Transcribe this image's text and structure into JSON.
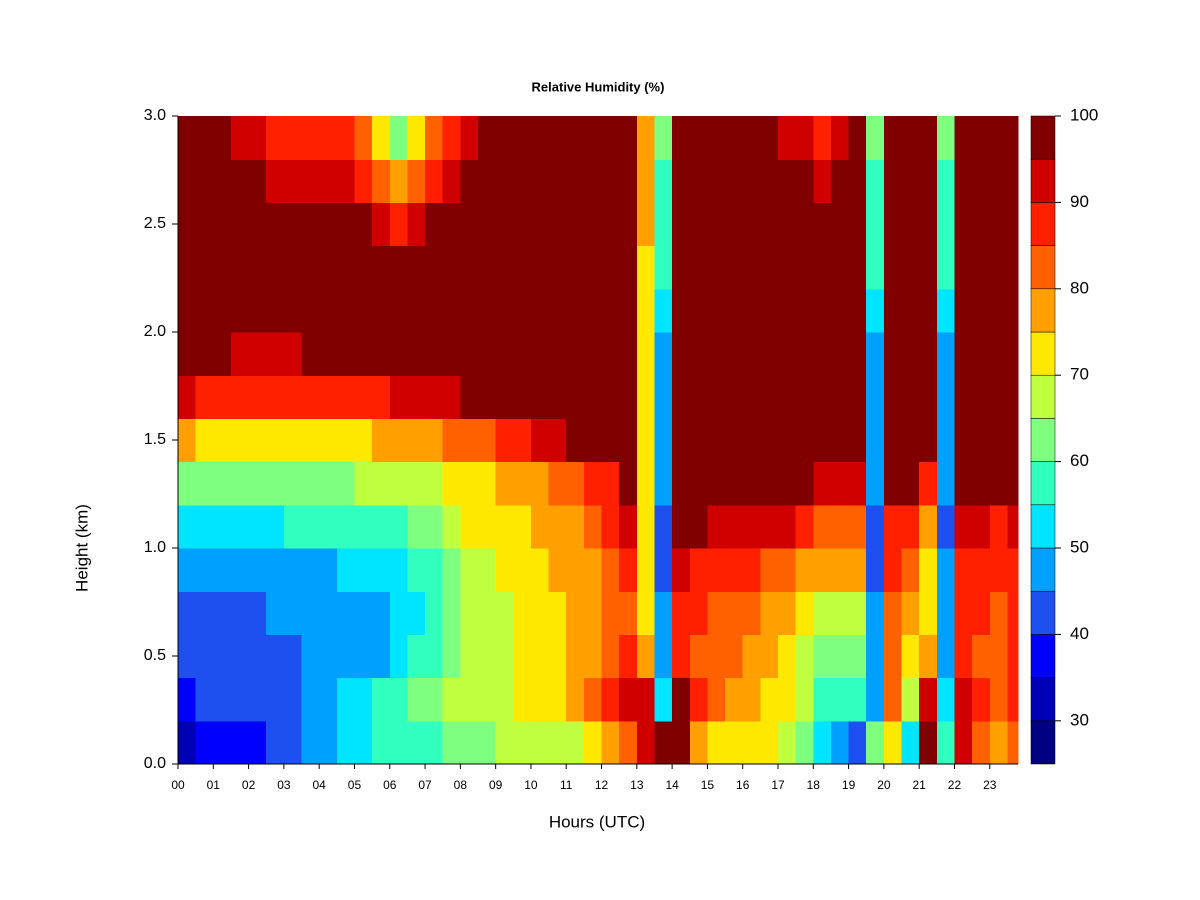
{
  "chart_data": {
    "type": "heatmap",
    "title": "Relative Humidity (%)",
    "x_label": "Hours (UTC)",
    "y_label": "Height (km)",
    "xlim": [
      0,
      23.8
    ],
    "ylim": [
      0,
      3
    ],
    "xticks": [
      {
        "value": 0,
        "label": "00"
      },
      {
        "value": 1,
        "label": "01"
      },
      {
        "value": 2,
        "label": "02"
      },
      {
        "value": 3,
        "label": "03"
      },
      {
        "value": 4,
        "label": "04"
      },
      {
        "value": 5,
        "label": "05"
      },
      {
        "value": 6,
        "label": "06"
      },
      {
        "value": 7,
        "label": "07"
      },
      {
        "value": 8,
        "label": "08"
      },
      {
        "value": 9,
        "label": "09"
      },
      10,
      11,
      12,
      13,
      14,
      15,
      16,
      17,
      18,
      19,
      20,
      21,
      22,
      23
    ],
    "yticks": [
      {
        "value": 0,
        "label": "0.0"
      },
      0.5,
      {
        "value": 1,
        "label": "1.0"
      },
      1.5,
      {
        "value": 2,
        "label": "2.0"
      },
      2.5,
      {
        "value": 3,
        "label": "3.0"
      }
    ],
    "x": [
      0,
      0.5,
      1,
      1.5,
      2,
      2.5,
      3,
      3.5,
      4,
      4.5,
      5,
      5.5,
      6,
      6.5,
      7,
      7.5,
      8,
      8.5,
      9,
      9.5,
      10,
      10.5,
      11,
      11.5,
      12,
      12.5,
      13,
      13.5,
      14,
      14.5,
      15,
      15.5,
      16,
      16.5,
      17,
      17.5,
      18,
      18.5,
      19,
      19.5,
      20,
      20.5,
      21,
      21.5,
      22,
      22.5,
      23,
      23.5
    ],
    "y": [
      0,
      0.2,
      0.4,
      0.6,
      0.8,
      1.0,
      1.2,
      1.4,
      1.6,
      1.8,
      2.0,
      2.2,
      2.4,
      2.6,
      2.8
    ],
    "z": [
      [
        33,
        35,
        37,
        38,
        38,
        40,
        42,
        45,
        47,
        50,
        52,
        55,
        55,
        57,
        58,
        60,
        62,
        63,
        65,
        65,
        67,
        68,
        68,
        70,
        75,
        80,
        93,
        95,
        97,
        75,
        72,
        70,
        72,
        72,
        68,
        62,
        50,
        45,
        42,
        60,
        70,
        50,
        95,
        55,
        90,
        80,
        78,
        80
      ],
      [
        38,
        40,
        40,
        42,
        42,
        43,
        44,
        45,
        47,
        50,
        52,
        55,
        58,
        62,
        63,
        65,
        67,
        68,
        68,
        70,
        72,
        73,
        75,
        80,
        88,
        90,
        93,
        50,
        95,
        85,
        80,
        75,
        75,
        72,
        70,
        65,
        58,
        55,
        55,
        45,
        80,
        65,
        90,
        50,
        92,
        85,
        82,
        85
      ],
      [
        40,
        40,
        42,
        42,
        43,
        43,
        44,
        45,
        45,
        47,
        48,
        48,
        52,
        55,
        58,
        62,
        65,
        67,
        68,
        70,
        72,
        73,
        75,
        78,
        82,
        85,
        75,
        45,
        88,
        82,
        80,
        80,
        78,
        75,
        72,
        68,
        62,
        60,
        60,
        45,
        80,
        72,
        75,
        45,
        85,
        82,
        80,
        85
      ],
      [
        40,
        42,
        42,
        43,
        43,
        45,
        45,
        45,
        45,
        47,
        48,
        48,
        50,
        52,
        55,
        60,
        65,
        67,
        68,
        70,
        72,
        73,
        75,
        78,
        80,
        82,
        70,
        45,
        85,
        85,
        82,
        82,
        80,
        78,
        75,
        70,
        68,
        67,
        68,
        45,
        82,
        75,
        70,
        45,
        85,
        85,
        82,
        85
      ],
      [
        45,
        45,
        45,
        47,
        47,
        48,
        48,
        48,
        48,
        50,
        50,
        52,
        52,
        55,
        58,
        62,
        67,
        68,
        70,
        72,
        73,
        75,
        75,
        78,
        82,
        85,
        70,
        42,
        90,
        88,
        85,
        85,
        85,
        82,
        80,
        78,
        75,
        75,
        75,
        42,
        85,
        80,
        70,
        45,
        88,
        88,
        85,
        88
      ],
      [
        52,
        52,
        52,
        53,
        53,
        53,
        55,
        55,
        55,
        55,
        55,
        57,
        57,
        60,
        62,
        65,
        70,
        72,
        72,
        73,
        75,
        75,
        77,
        80,
        85,
        90,
        70,
        42,
        100,
        95,
        92,
        90,
        92,
        92,
        90,
        85,
        82,
        80,
        82,
        42,
        88,
        85,
        75,
        42,
        90,
        90,
        88,
        92
      ],
      [
        60,
        60,
        60,
        60,
        62,
        62,
        62,
        63,
        63,
        63,
        65,
        65,
        65,
        67,
        68,
        70,
        72,
        73,
        75,
        77,
        78,
        80,
        82,
        85,
        88,
        95,
        70,
        45,
        100,
        100,
        98,
        98,
        98,
        98,
        97,
        95,
        92,
        92,
        92,
        45,
        95,
        95,
        85,
        45,
        95,
        95,
        95,
        97
      ],
      [
        75,
        73,
        73,
        72,
        72,
        72,
        72,
        73,
        73,
        73,
        73,
        75,
        75,
        77,
        78,
        80,
        82,
        83,
        85,
        88,
        90,
        92,
        95,
        97,
        98,
        100,
        70,
        48,
        100,
        100,
        100,
        100,
        100,
        100,
        100,
        100,
        100,
        100,
        100,
        45,
        100,
        100,
        100,
        45,
        100,
        100,
        100,
        100
      ],
      [
        90,
        88,
        88,
        87,
        87,
        87,
        87,
        88,
        88,
        88,
        88,
        88,
        90,
        90,
        92,
        92,
        95,
        95,
        97,
        98,
        100,
        100,
        100,
        100,
        100,
        100,
        70,
        45,
        100,
        100,
        100,
        100,
        100,
        100,
        100,
        100,
        100,
        100,
        100,
        45,
        100,
        100,
        100,
        45,
        100,
        100,
        98,
        100
      ],
      [
        95,
        95,
        95,
        93,
        93,
        93,
        93,
        95,
        95,
        95,
        95,
        95,
        97,
        97,
        98,
        98,
        100,
        100,
        100,
        100,
        100,
        100,
        100,
        100,
        100,
        100,
        70,
        48,
        100,
        100,
        100,
        100,
        100,
        100,
        100,
        100,
        100,
        100,
        100,
        48,
        100,
        100,
        100,
        48,
        100,
        100,
        100,
        100
      ],
      [
        100,
        100,
        100,
        100,
        100,
        100,
        100,
        100,
        100,
        100,
        100,
        100,
        100,
        100,
        100,
        100,
        100,
        100,
        100,
        100,
        100,
        100,
        100,
        100,
        100,
        100,
        72,
        52,
        100,
        100,
        100,
        100,
        100,
        100,
        100,
        100,
        100,
        100,
        100,
        52,
        100,
        100,
        100,
        52,
        100,
        100,
        100,
        100
      ],
      [
        100,
        100,
        100,
        100,
        100,
        100,
        100,
        100,
        100,
        100,
        100,
        100,
        95,
        97,
        100,
        100,
        100,
        100,
        100,
        100,
        100,
        100,
        100,
        100,
        100,
        100,
        72,
        55,
        100,
        100,
        100,
        100,
        100,
        100,
        100,
        100,
        100,
        100,
        100,
        55,
        100,
        100,
        100,
        55,
        100,
        100,
        100,
        100
      ],
      [
        100,
        100,
        100,
        100,
        100,
        100,
        100,
        100,
        100,
        100,
        97,
        92,
        85,
        90,
        97,
        100,
        100,
        100,
        100,
        100,
        100,
        100,
        100,
        100,
        100,
        100,
        75,
        55,
        100,
        100,
        100,
        100,
        100,
        100,
        100,
        100,
        100,
        100,
        100,
        55,
        100,
        100,
        100,
        55,
        100,
        100,
        100,
        100
      ],
      [
        100,
        100,
        100,
        97,
        95,
        93,
        92,
        92,
        92,
        92,
        88,
        82,
        75,
        80,
        88,
        92,
        97,
        100,
        100,
        100,
        100,
        100,
        100,
        100,
        100,
        100,
        75,
        58,
        100,
        100,
        100,
        100,
        100,
        98,
        97,
        95,
        93,
        95,
        100,
        58,
        100,
        98,
        100,
        58,
        100,
        98,
        97,
        100
      ],
      [
        98,
        97,
        95,
        93,
        90,
        88,
        87,
        87,
        87,
        85,
        80,
        72,
        62,
        70,
        82,
        87,
        92,
        95,
        100,
        100,
        100,
        100,
        100,
        100,
        100,
        100,
        78,
        60,
        100,
        100,
        100,
        98,
        98,
        95,
        93,
        90,
        88,
        92,
        98,
        60,
        100,
        95,
        100,
        60,
        100,
        95,
        95,
        98
      ]
    ],
    "levels": [
      25,
      30,
      35,
      40,
      45,
      50,
      55,
      60,
      65,
      70,
      75,
      80,
      85,
      90,
      95,
      100
    ],
    "colors": [
      "#000080",
      "#0000b4",
      "#0000ff",
      "#1e50f0",
      "#00a0ff",
      "#00e5ff",
      "#30ffc0",
      "#7fff7f",
      "#c0ff40",
      "#ffe800",
      "#ffa000",
      "#ff6000",
      "#ff2000",
      "#d00000",
      "#800000"
    ],
    "colorbar_ticks": [
      30,
      40,
      50,
      60,
      70,
      80,
      90,
      100
    ]
  }
}
